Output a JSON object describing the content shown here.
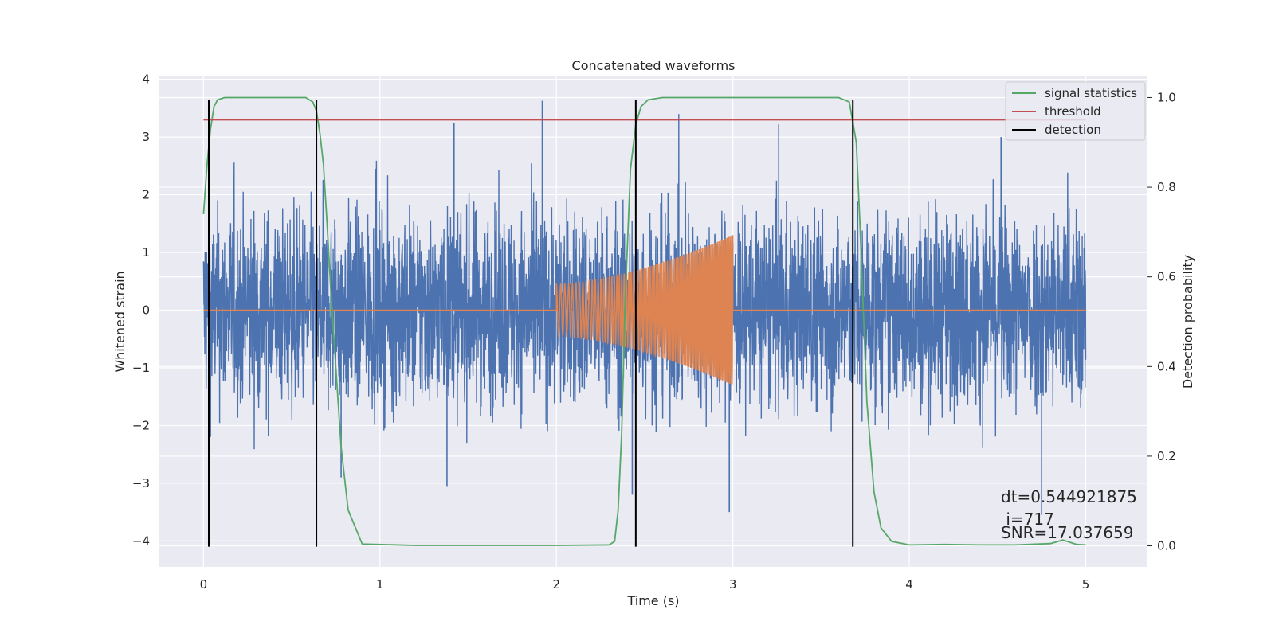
{
  "chart_data": {
    "type": "line",
    "title": "Concatenated waveforms",
    "xlabel": "Time (s)",
    "ylabel": "Whitened strain",
    "y2label": "Detection probability",
    "xlim": [
      -0.25,
      5.35
    ],
    "ylim": [
      -4.45,
      4.05
    ],
    "y2lim": [
      -0.047,
      1.047
    ],
    "x_ticks": [
      "0",
      "1",
      "2",
      "3",
      "4",
      "5"
    ],
    "y_ticks": [
      "4",
      "3",
      "2",
      "1",
      "0",
      "−1",
      "−2",
      "−3",
      "−4"
    ],
    "y2_ticks": [
      "1.0",
      "0.8",
      "0.6",
      "0.4",
      "0.2",
      "0.0"
    ],
    "grid": true,
    "legend_position": "top-right",
    "legend": [
      "signal statistics",
      "threshold",
      "detection"
    ],
    "colors": {
      "strain": "#4c72b0",
      "injected_signal": "#dd8452",
      "signal_statistics": "#55a868",
      "threshold": "#c44e52",
      "detection": "#000000",
      "plot_background": "#eaeaf2",
      "grid": "#ffffff"
    },
    "series": [
      {
        "name": "whitened strain (noise)",
        "axis": "left",
        "description": "noise-like trace between t=0 and t=5, amplitude mostly within ±2.2, peaks up to about ±3.6",
        "t_range": [
          0,
          5
        ],
        "amplitude_envelope": 2.2,
        "peak_excursions": [
          {
            "t": 1.42,
            "v": 3.25
          },
          {
            "t": 1.92,
            "v": 3.63
          },
          {
            "t": 2.43,
            "v": -3.2
          },
          {
            "t": 2.98,
            "v": -3.5
          },
          {
            "t": 4.75,
            "v": -3.55
          },
          {
            "t": 1.38,
            "v": -3.05
          },
          {
            "t": 0.78,
            "v": -2.9
          },
          {
            "t": 4.52,
            "v": 3.0
          },
          {
            "t": 3.26,
            "v": 3.22
          }
        ]
      },
      {
        "name": "injected chirp",
        "axis": "left",
        "description": "zero except between t=2 and t=3 where a chirp grows in amplitude and frequency",
        "flat_value": 0,
        "chirp_start": 2.0,
        "chirp_end": 3.0,
        "amplitude_start": 0.45,
        "amplitude_end": 1.3
      },
      {
        "name": "signal statistics",
        "axis": "right",
        "x": [
          0.0,
          0.02,
          0.04,
          0.06,
          0.08,
          0.12,
          0.2,
          0.4,
          0.58,
          0.62,
          0.64,
          0.66,
          0.68,
          0.7,
          0.72,
          0.75,
          0.78,
          0.82,
          0.9,
          1.2,
          1.6,
          2.0,
          2.3,
          2.33,
          2.35,
          2.37,
          2.39,
          2.42,
          2.45,
          2.48,
          2.52,
          2.6,
          2.8,
          3.2,
          3.6,
          3.66,
          3.7,
          3.72,
          3.74,
          3.76,
          3.8,
          3.84,
          3.9,
          4.0,
          4.2,
          4.4,
          4.6,
          4.8,
          4.87,
          4.95,
          5.0
        ],
        "values": [
          0.74,
          0.85,
          0.93,
          0.98,
          0.995,
          1.0,
          1.0,
          1.0,
          1.0,
          0.99,
          0.97,
          0.92,
          0.85,
          0.72,
          0.58,
          0.4,
          0.22,
          0.08,
          0.004,
          0.001,
          0.001,
          0.001,
          0.002,
          0.01,
          0.08,
          0.25,
          0.55,
          0.84,
          0.94,
          0.98,
          0.995,
          1.0,
          1.0,
          1.0,
          1.0,
          0.99,
          0.9,
          0.72,
          0.52,
          0.32,
          0.12,
          0.04,
          0.01,
          0.002,
          0.003,
          0.002,
          0.002,
          0.005,
          0.013,
          0.003,
          0.002
        ]
      },
      {
        "name": "threshold",
        "axis": "right",
        "x": [
          0,
          5
        ],
        "values": [
          0.95,
          0.95
        ]
      }
    ],
    "detections": [
      0.03,
      0.64,
      2.45,
      3.68
    ],
    "detection_y_range": [
      -4.1,
      3.65
    ],
    "annotations": [
      "dt=0.544921875",
      " i=717",
      "SNR=17.037659"
    ]
  }
}
